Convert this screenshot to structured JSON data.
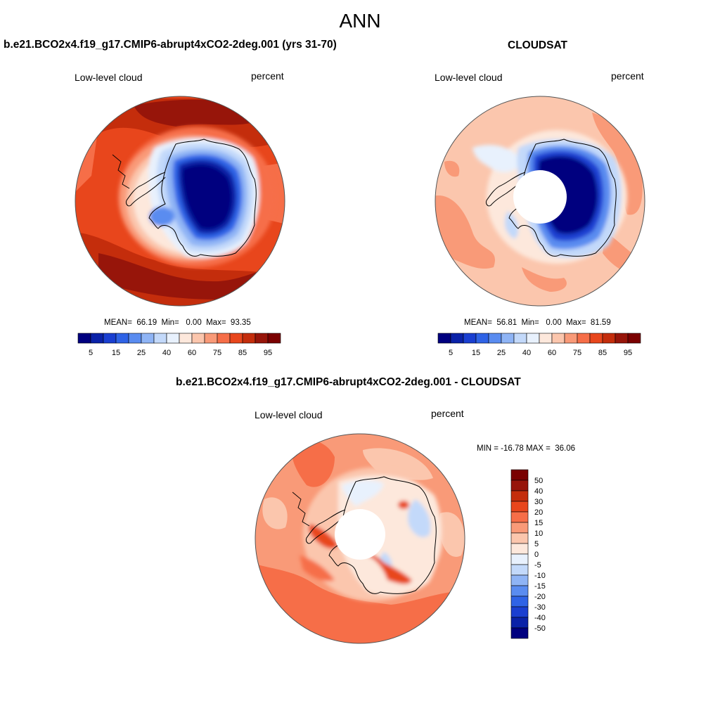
{
  "page": {
    "title": "ANN"
  },
  "panels": [
    {
      "title": "b.e21.BCO2x4.f19_g17.CMIP6-abrupt4xCO2-2deg.001 (yrs 31-70)",
      "left_label": "Low-level cloud",
      "right_label": "percent",
      "stats": "MEAN=  66.19  Min=   0.00  Max=  93.35",
      "colorbar_ticks": [
        "5",
        "15",
        "25",
        "40",
        "60",
        "75",
        "85",
        "95"
      ]
    },
    {
      "title": "CLOUDSAT",
      "left_label": "Low-level cloud",
      "right_label": "percent",
      "stats": "MEAN=  56.81  Min=   0.00  Max=  81.59",
      "colorbar_ticks": [
        "5",
        "15",
        "25",
        "40",
        "60",
        "75",
        "85",
        "95"
      ]
    },
    {
      "title": "b.e21.BCO2x4.f19_g17.CMIP6-abrupt4xCO2-2deg.001 - CLOUDSAT",
      "left_label": "Low-level cloud",
      "right_label": "percent",
      "stats": "MIN = -16.78 MAX =  36.06",
      "colorbar_ticks": [
        "50",
        "40",
        "30",
        "20",
        "15",
        "10",
        "5",
        "0",
        "-5",
        "-10",
        "-15",
        "-20",
        "-30",
        "-40",
        "-50"
      ]
    }
  ],
  "colors": {
    "abs_scale": [
      "#00007f",
      "#0a22a8",
      "#1a3fd1",
      "#2f63e6",
      "#5a8cf0",
      "#8fb4f5",
      "#c3d9fa",
      "#e8f1fd",
      "#fde8dc",
      "#fbc6ad",
      "#f99a78",
      "#f66e48",
      "#e8461c",
      "#c42d0c",
      "#97150a",
      "#7a0000"
    ],
    "diff_scale": [
      "#7a0000",
      "#97150a",
      "#c42d0c",
      "#e8461c",
      "#f66e48",
      "#f99a78",
      "#fbc6ad",
      "#fde8dc",
      "#e8f1fd",
      "#c3d9fa",
      "#8fb4f5",
      "#5a8cf0",
      "#2f63e6",
      "#1a3fd1",
      "#0a22a8",
      "#00007f"
    ]
  }
}
